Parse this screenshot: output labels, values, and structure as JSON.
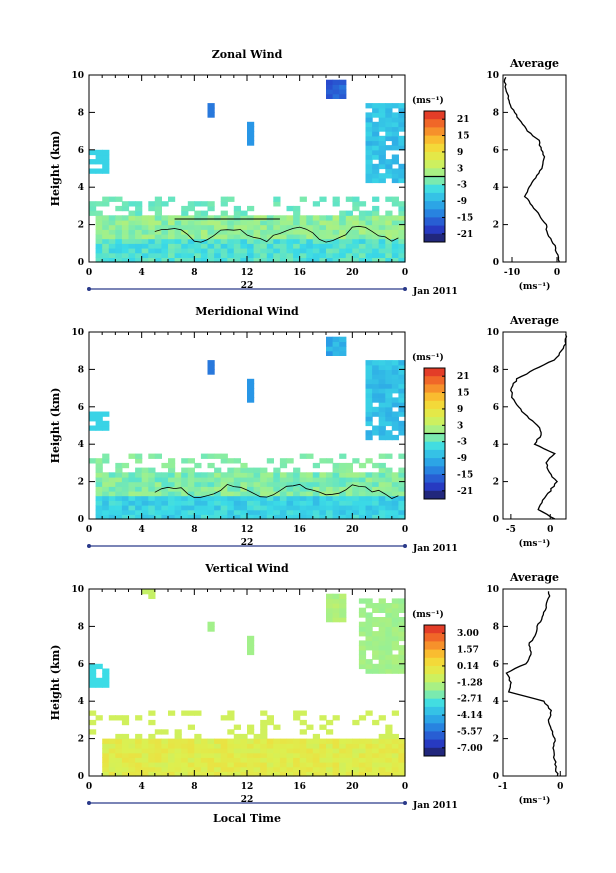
{
  "figure": {
    "date_label": "Jan 2011",
    "xlabel": "Local Time",
    "ylabel": "Height (km)",
    "average_title": "Average",
    "unit_label": "(ms⁻¹)"
  },
  "chart_data": [
    {
      "type": "heatmap",
      "title": "Zonal Wind",
      "ylabel": "Height (km)",
      "x_ticks": [
        "0",
        "4",
        "8",
        "12",
        "16",
        "20",
        "0"
      ],
      "day_label": "22",
      "y_ticks": [
        "0",
        "2",
        "4",
        "6",
        "8",
        "10"
      ],
      "ylim": [
        0,
        10
      ],
      "colorbar": {
        "unit": "(ms⁻¹)",
        "labels": [
          "21",
          "15",
          "9",
          "3",
          "-3",
          "-9",
          "-15",
          "-21"
        ],
        "range": [
          -24,
          24
        ]
      },
      "average": {
        "title": "Average",
        "xlim": [
          -12,
          2
        ],
        "x_ticks": [
          "-10",
          "0"
        ],
        "xlabel": "(ms⁻¹)",
        "heights": [
          0,
          0.5,
          1,
          1.5,
          2,
          2.5,
          3,
          3.5,
          4,
          4.5,
          5,
          5.5,
          6,
          6.5,
          7,
          7.5,
          8,
          8.5,
          9,
          9.5
        ],
        "values": [
          0.5,
          0,
          -0.8,
          -2,
          -2.5,
          -4,
          -5.5,
          -7,
          -6,
          -4.8,
          -3.5,
          -2.8,
          -3.5,
          -4,
          -6.5,
          -8,
          -9.5,
          -10.5,
          -11,
          -11.5
        ]
      }
    },
    {
      "type": "heatmap",
      "title": "Meridional Wind",
      "ylabel": "Height (km)",
      "x_ticks": [
        "0",
        "4",
        "8",
        "12",
        "16",
        "20",
        "0"
      ],
      "day_label": "22",
      "y_ticks": [
        "0",
        "2",
        "4",
        "6",
        "8",
        "10"
      ],
      "ylim": [
        0,
        10
      ],
      "colorbar": {
        "unit": "(ms⁻¹)",
        "labels": [
          "21",
          "15",
          "9",
          "3",
          "-3",
          "-9",
          "-15",
          "-21"
        ],
        "range": [
          -24,
          24
        ]
      },
      "average": {
        "title": "Average",
        "xlim": [
          -6,
          2
        ],
        "x_ticks": [
          "-5",
          "0"
        ],
        "xlabel": "(ms⁻¹)",
        "heights": [
          0,
          0.5,
          1,
          1.5,
          2,
          2.5,
          3,
          3.5,
          4,
          4.5,
          5,
          5.5,
          6,
          6.5,
          7,
          7.5,
          8,
          8.5,
          9,
          9.5
        ],
        "values": [
          0.5,
          -1.5,
          -1,
          0,
          0.8,
          -0.2,
          -0.5,
          0.5,
          -2,
          -1.2,
          -1.5,
          -3,
          -4,
          -4.8,
          -5,
          -4.2,
          -2,
          0.5,
          1.5,
          2
        ]
      }
    },
    {
      "type": "heatmap",
      "title": "Vertical Wind",
      "ylabel": "Height (km)",
      "x_ticks": [
        "0",
        "4",
        "8",
        "12",
        "16",
        "20",
        "0"
      ],
      "day_label": "22",
      "y_ticks": [
        "0",
        "2",
        "4",
        "6",
        "8",
        "10"
      ],
      "ylim": [
        0,
        10
      ],
      "colorbar": {
        "unit": "(ms⁻¹)",
        "labels": [
          "3.00",
          "1.57",
          "0.14",
          "-1.28",
          "-2.71",
          "-4.14",
          "-5.57",
          "-7.00"
        ],
        "range": [
          -7.8,
          3.8
        ]
      },
      "average": {
        "title": "Average",
        "xlim": [
          -1,
          0.1
        ],
        "x_ticks": [
          "-1",
          "0"
        ],
        "xlabel": "(ms⁻¹)",
        "heights": [
          0,
          0.5,
          1,
          1.5,
          2,
          2.5,
          3,
          3.5,
          4,
          4.5,
          5,
          5.5,
          6,
          6.5,
          7,
          7.5,
          8,
          8.5,
          9,
          9.5
        ],
        "values": [
          -0.05,
          -0.08,
          -0.1,
          -0.12,
          -0.1,
          -0.15,
          -0.2,
          -0.15,
          -0.3,
          -0.9,
          -0.85,
          -0.95,
          -0.6,
          -0.5,
          -0.55,
          -0.45,
          -0.4,
          -0.3,
          -0.25,
          -0.2
        ]
      }
    }
  ]
}
